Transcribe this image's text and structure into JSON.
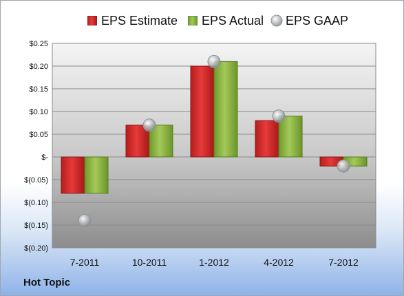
{
  "company": "Hot Topic",
  "colors": {
    "estimate": "#d42b2b",
    "actual": "#8cb345",
    "gaap": "#b9bcc0"
  },
  "chart_data": {
    "type": "bar",
    "categories": [
      "7-2011",
      "10-2011",
      "1-2012",
      "4-2012",
      "7-2012"
    ],
    "series": [
      {
        "name": "EPS Estimate",
        "values": [
          -0.08,
          0.07,
          0.2,
          0.08,
          -0.02
        ]
      },
      {
        "name": "EPS Actual",
        "values": [
          -0.08,
          0.07,
          0.21,
          0.09,
          -0.02
        ]
      },
      {
        "name": "EPS GAAP",
        "marker": "sphere",
        "values": [
          -0.14,
          0.07,
          0.21,
          0.09,
          -0.02
        ]
      }
    ],
    "ylim": [
      -0.2,
      0.25
    ],
    "yticks": [
      0.25,
      0.2,
      0.15,
      0.1,
      0.05,
      0.0,
      -0.05,
      -0.1,
      -0.15,
      -0.2
    ],
    "ytick_labels": [
      "$0.25",
      "$0.20",
      "$0.15",
      "$0.10",
      "$0.05",
      "$-",
      "$(0.05)",
      "$(0.10)",
      "$(0.15)",
      "$(0.20)"
    ],
    "legend_position": "top",
    "grid": true
  }
}
